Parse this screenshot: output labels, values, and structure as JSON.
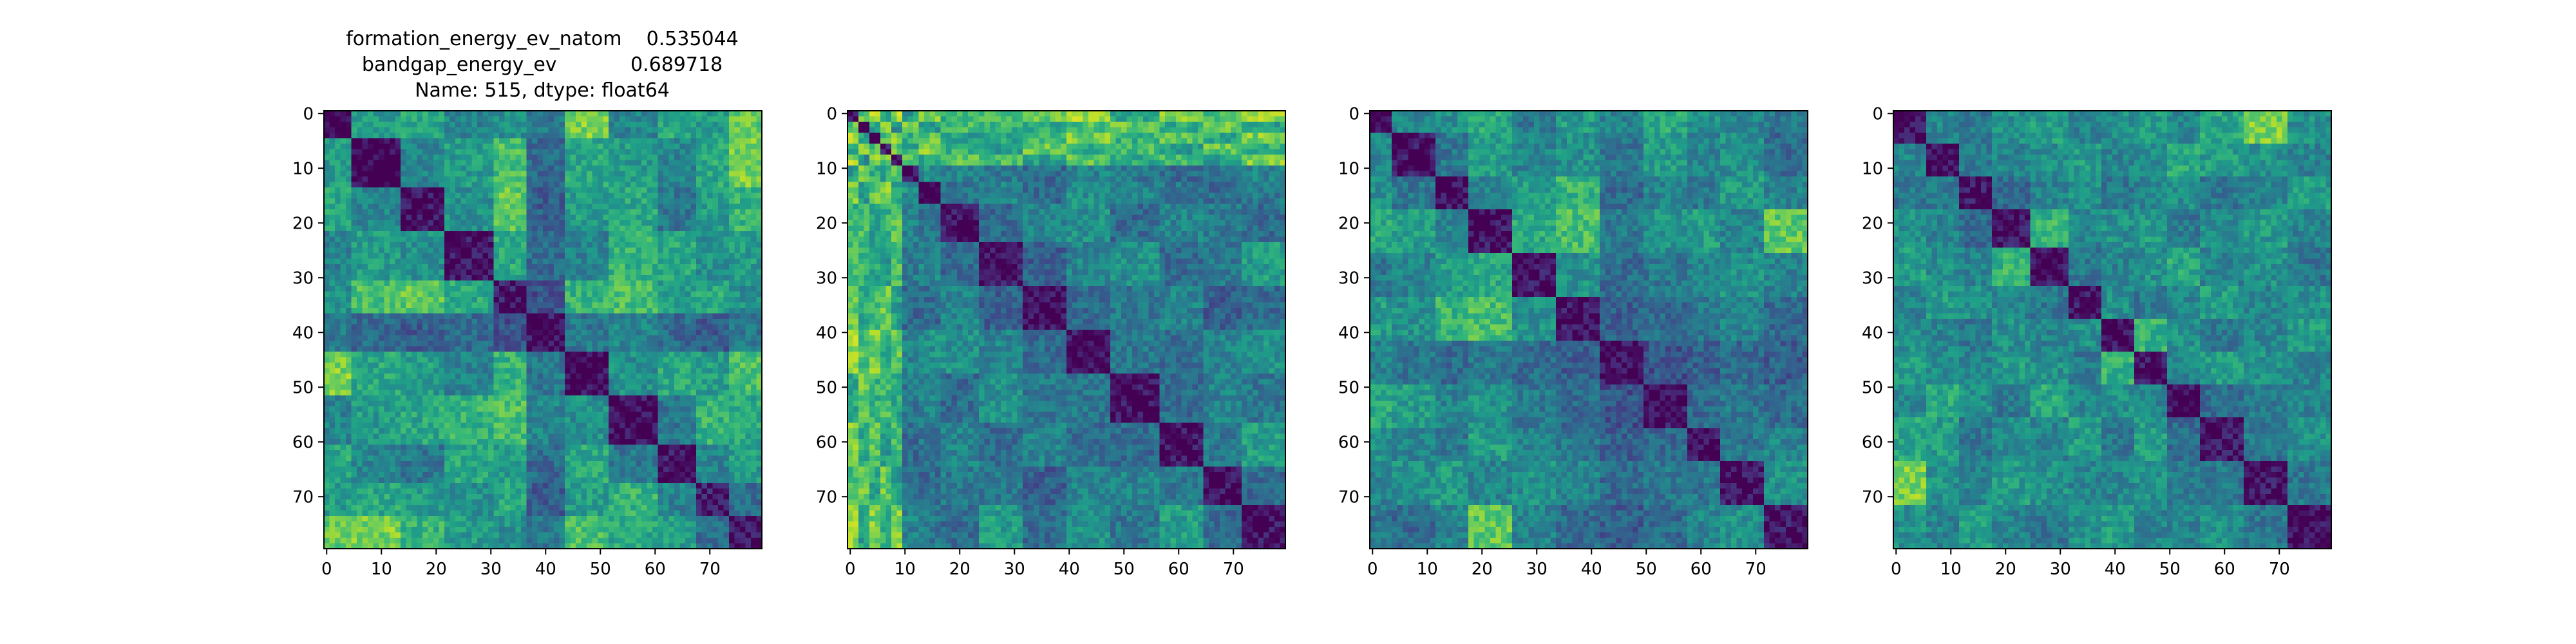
{
  "figure": {
    "title_lines": [
      "formation_energy_ev_natom    0.535044",
      "bandgap_energy_ev            0.689718",
      "Name: 515, dtype: float64"
    ]
  },
  "chart_data": [
    {
      "type": "heatmap",
      "colormap": "viridis",
      "matrix_size": 80,
      "symmetric": true,
      "diagonal_value": 0,
      "xticks": [
        0,
        10,
        20,
        30,
        40,
        50,
        60,
        70
      ],
      "yticks": [
        0,
        10,
        20,
        30,
        40,
        50,
        60,
        70
      ],
      "block_boundaries": [
        0,
        5,
        14,
        22,
        31,
        37,
        44,
        52,
        61,
        68,
        74,
        80
      ],
      "block_values": [
        [
          0.0,
          0.55,
          0.6,
          0.45,
          0.5,
          0.4,
          0.8,
          0.45,
          0.6,
          0.55,
          0.75
        ],
        [
          0.55,
          0.0,
          0.45,
          0.55,
          0.7,
          0.35,
          0.6,
          0.55,
          0.45,
          0.6,
          0.8
        ],
        [
          0.6,
          0.45,
          0.05,
          0.5,
          0.75,
          0.3,
          0.55,
          0.6,
          0.4,
          0.55,
          0.65
        ],
        [
          0.45,
          0.55,
          0.5,
          0.05,
          0.6,
          0.35,
          0.45,
          0.65,
          0.6,
          0.5,
          0.55
        ],
        [
          0.5,
          0.7,
          0.75,
          0.6,
          0.1,
          0.25,
          0.65,
          0.7,
          0.55,
          0.6,
          0.5
        ],
        [
          0.4,
          0.35,
          0.3,
          0.35,
          0.25,
          0.05,
          0.4,
          0.45,
          0.35,
          0.3,
          0.4
        ],
        [
          0.8,
          0.6,
          0.55,
          0.45,
          0.65,
          0.4,
          0.05,
          0.5,
          0.6,
          0.55,
          0.7
        ],
        [
          0.45,
          0.55,
          0.6,
          0.65,
          0.7,
          0.45,
          0.5,
          0.05,
          0.4,
          0.65,
          0.6
        ],
        [
          0.6,
          0.45,
          0.4,
          0.6,
          0.55,
          0.35,
          0.6,
          0.4,
          0.05,
          0.45,
          0.55
        ],
        [
          0.55,
          0.6,
          0.55,
          0.5,
          0.6,
          0.3,
          0.55,
          0.65,
          0.45,
          0.1,
          0.35
        ],
        [
          0.75,
          0.8,
          0.65,
          0.55,
          0.5,
          0.4,
          0.7,
          0.6,
          0.55,
          0.35,
          0.05
        ]
      ]
    },
    {
      "type": "heatmap",
      "colormap": "viridis",
      "matrix_size": 80,
      "symmetric": true,
      "diagonal_value": 0,
      "xticks": [
        0,
        10,
        20,
        30,
        40,
        50,
        60,
        70
      ],
      "yticks": [
        0,
        10,
        20,
        30,
        40,
        50,
        60,
        70
      ],
      "block_boundaries": [
        0,
        2,
        4,
        6,
        8,
        10,
        13,
        17,
        24,
        32,
        40,
        48,
        57,
        65,
        72,
        80
      ],
      "block_values": [
        [
          0.05,
          0.75,
          0.9,
          0.6,
          0.85,
          0.55,
          0.8,
          0.65,
          0.7,
          0.75,
          0.85,
          0.6,
          0.8,
          0.7,
          0.85
        ],
        [
          0.75,
          0.05,
          0.6,
          0.85,
          0.5,
          0.8,
          0.55,
          0.7,
          0.65,
          0.6,
          0.7,
          0.75,
          0.6,
          0.8,
          0.55
        ],
        [
          0.9,
          0.6,
          0.05,
          0.7,
          0.8,
          0.65,
          0.75,
          0.55,
          0.6,
          0.7,
          0.8,
          0.65,
          0.75,
          0.6,
          0.8
        ],
        [
          0.6,
          0.85,
          0.7,
          0.05,
          0.75,
          0.6,
          0.8,
          0.65,
          0.55,
          0.75,
          0.6,
          0.7,
          0.55,
          0.75,
          0.65
        ],
        [
          0.85,
          0.5,
          0.8,
          0.75,
          0.05,
          0.7,
          0.6,
          0.75,
          0.7,
          0.55,
          0.75,
          0.6,
          0.7,
          0.55,
          0.8
        ],
        [
          0.55,
          0.8,
          0.65,
          0.6,
          0.7,
          0.05,
          0.5,
          0.45,
          0.4,
          0.35,
          0.45,
          0.4,
          0.35,
          0.4,
          0.45
        ],
        [
          0.8,
          0.55,
          0.75,
          0.8,
          0.6,
          0.5,
          0.05,
          0.4,
          0.45,
          0.35,
          0.5,
          0.45,
          0.4,
          0.35,
          0.4
        ],
        [
          0.65,
          0.7,
          0.55,
          0.65,
          0.75,
          0.45,
          0.4,
          0.05,
          0.35,
          0.45,
          0.5,
          0.35,
          0.45,
          0.4,
          0.35
        ],
        [
          0.7,
          0.65,
          0.6,
          0.55,
          0.7,
          0.4,
          0.45,
          0.35,
          0.05,
          0.3,
          0.45,
          0.5,
          0.35,
          0.4,
          0.55
        ],
        [
          0.75,
          0.6,
          0.7,
          0.75,
          0.55,
          0.35,
          0.35,
          0.45,
          0.3,
          0.05,
          0.35,
          0.4,
          0.45,
          0.3,
          0.35
        ],
        [
          0.85,
          0.7,
          0.8,
          0.6,
          0.75,
          0.45,
          0.5,
          0.5,
          0.45,
          0.35,
          0.05,
          0.4,
          0.35,
          0.45,
          0.5
        ],
        [
          0.6,
          0.75,
          0.65,
          0.7,
          0.6,
          0.4,
          0.45,
          0.35,
          0.5,
          0.4,
          0.4,
          0.05,
          0.35,
          0.45,
          0.4
        ],
        [
          0.8,
          0.6,
          0.75,
          0.55,
          0.7,
          0.35,
          0.4,
          0.45,
          0.35,
          0.45,
          0.35,
          0.35,
          0.05,
          0.4,
          0.55
        ],
        [
          0.7,
          0.8,
          0.6,
          0.75,
          0.55,
          0.4,
          0.35,
          0.4,
          0.4,
          0.3,
          0.45,
          0.45,
          0.4,
          0.05,
          0.35
        ],
        [
          0.85,
          0.55,
          0.8,
          0.65,
          0.8,
          0.45,
          0.4,
          0.35,
          0.55,
          0.35,
          0.5,
          0.4,
          0.55,
          0.35,
          0.05
        ]
      ]
    },
    {
      "type": "heatmap",
      "colormap": "viridis",
      "matrix_size": 80,
      "symmetric": true,
      "diagonal_value": 0,
      "xticks": [
        0,
        10,
        20,
        30,
        40,
        50,
        60,
        70
      ],
      "yticks": [
        0,
        10,
        20,
        30,
        40,
        50,
        60,
        70
      ],
      "block_boundaries": [
        0,
        4,
        12,
        18,
        26,
        34,
        42,
        50,
        58,
        64,
        72,
        80
      ],
      "block_values": [
        [
          0.05,
          0.45,
          0.5,
          0.6,
          0.4,
          0.55,
          0.45,
          0.6,
          0.5,
          0.45,
          0.4
        ],
        [
          0.45,
          0.05,
          0.4,
          0.55,
          0.45,
          0.5,
          0.4,
          0.55,
          0.45,
          0.5,
          0.35
        ],
        [
          0.5,
          0.4,
          0.05,
          0.45,
          0.55,
          0.65,
          0.35,
          0.45,
          0.4,
          0.55,
          0.45
        ],
        [
          0.6,
          0.55,
          0.45,
          0.05,
          0.6,
          0.7,
          0.4,
          0.5,
          0.55,
          0.45,
          0.75
        ],
        [
          0.4,
          0.45,
          0.55,
          0.6,
          0.05,
          0.5,
          0.35,
          0.4,
          0.45,
          0.5,
          0.45
        ],
        [
          0.55,
          0.5,
          0.65,
          0.7,
          0.5,
          0.05,
          0.3,
          0.35,
          0.4,
          0.45,
          0.35
        ],
        [
          0.45,
          0.4,
          0.35,
          0.4,
          0.35,
          0.3,
          0.05,
          0.25,
          0.3,
          0.35,
          0.3
        ],
        [
          0.6,
          0.55,
          0.45,
          0.5,
          0.4,
          0.35,
          0.25,
          0.05,
          0.35,
          0.4,
          0.35
        ],
        [
          0.5,
          0.45,
          0.4,
          0.55,
          0.45,
          0.4,
          0.3,
          0.35,
          0.05,
          0.4,
          0.45
        ],
        [
          0.45,
          0.5,
          0.55,
          0.45,
          0.5,
          0.45,
          0.35,
          0.4,
          0.4,
          0.05,
          0.5
        ],
        [
          0.4,
          0.35,
          0.45,
          0.75,
          0.45,
          0.35,
          0.3,
          0.35,
          0.45,
          0.5,
          0.05
        ]
      ]
    },
    {
      "type": "heatmap",
      "colormap": "viridis",
      "matrix_size": 80,
      "symmetric": true,
      "diagonal_value": 0,
      "xticks": [
        0,
        10,
        20,
        30,
        40,
        50,
        60,
        70
      ],
      "yticks": [
        0,
        10,
        20,
        30,
        40,
        50,
        60,
        70
      ],
      "block_boundaries": [
        0,
        6,
        12,
        18,
        25,
        32,
        38,
        44,
        50,
        56,
        64,
        72,
        80
      ],
      "block_values": [
        [
          0.05,
          0.45,
          0.4,
          0.5,
          0.55,
          0.45,
          0.5,
          0.55,
          0.45,
          0.6,
          0.8,
          0.5
        ],
        [
          0.45,
          0.05,
          0.4,
          0.45,
          0.5,
          0.55,
          0.45,
          0.5,
          0.6,
          0.55,
          0.5,
          0.45
        ],
        [
          0.4,
          0.4,
          0.05,
          0.35,
          0.45,
          0.5,
          0.4,
          0.45,
          0.5,
          0.4,
          0.45,
          0.55
        ],
        [
          0.5,
          0.45,
          0.35,
          0.05,
          0.65,
          0.45,
          0.5,
          0.55,
          0.4,
          0.5,
          0.55,
          0.45
        ],
        [
          0.55,
          0.5,
          0.45,
          0.65,
          0.05,
          0.4,
          0.45,
          0.5,
          0.6,
          0.45,
          0.5,
          0.4
        ],
        [
          0.45,
          0.55,
          0.5,
          0.45,
          0.4,
          0.05,
          0.5,
          0.4,
          0.45,
          0.55,
          0.45,
          0.5
        ],
        [
          0.5,
          0.45,
          0.4,
          0.5,
          0.45,
          0.5,
          0.05,
          0.65,
          0.5,
          0.4,
          0.45,
          0.55
        ],
        [
          0.55,
          0.5,
          0.45,
          0.55,
          0.5,
          0.4,
          0.65,
          0.05,
          0.45,
          0.55,
          0.5,
          0.45
        ],
        [
          0.45,
          0.6,
          0.5,
          0.4,
          0.6,
          0.45,
          0.5,
          0.45,
          0.05,
          0.35,
          0.4,
          0.45
        ],
        [
          0.6,
          0.55,
          0.4,
          0.5,
          0.45,
          0.55,
          0.4,
          0.55,
          0.35,
          0.05,
          0.4,
          0.5
        ],
        [
          0.8,
          0.5,
          0.45,
          0.55,
          0.5,
          0.45,
          0.45,
          0.5,
          0.4,
          0.4,
          0.05,
          0.4
        ],
        [
          0.5,
          0.45,
          0.55,
          0.45,
          0.4,
          0.5,
          0.55,
          0.45,
          0.45,
          0.5,
          0.4,
          0.05
        ]
      ]
    }
  ]
}
